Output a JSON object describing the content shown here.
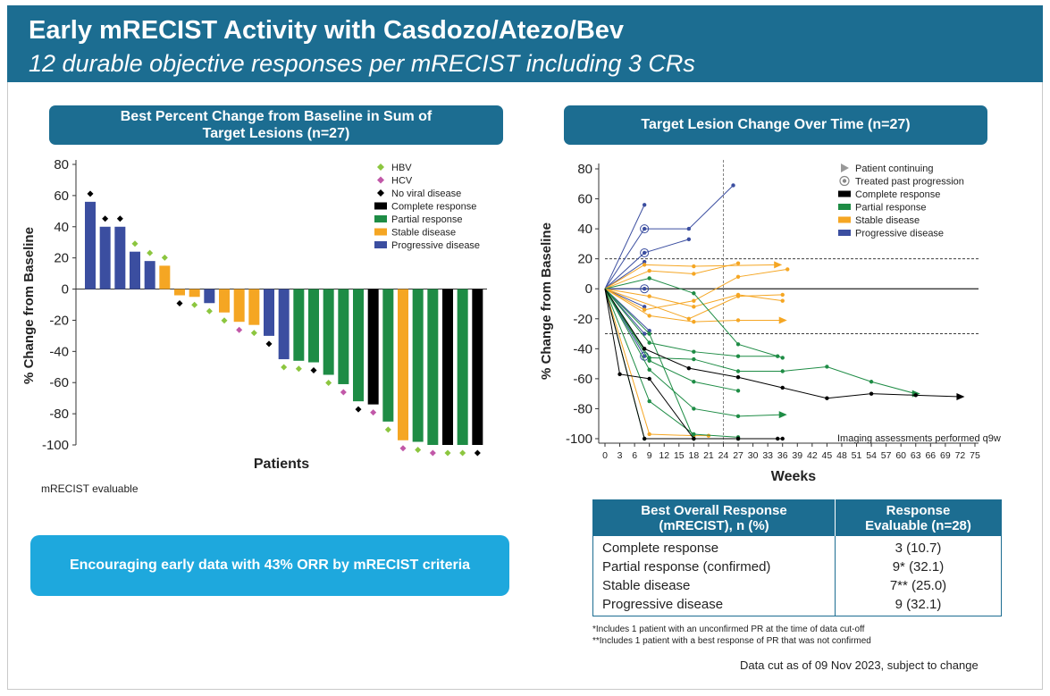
{
  "header": {
    "title": "Early mRECIST Activity with Casdozo/Atezo/Bev",
    "subtitle": "12 durable objective responses per mRECIST including 3 CRs"
  },
  "colors": {
    "complete": "#000000",
    "partial": "#1e8c45",
    "stable": "#f5a623",
    "progressive": "#3b4ea0",
    "hbv": "#8cc63f",
    "hcv": "#c158a8",
    "none": "#000000",
    "header": "#1c6d91",
    "cta": "#1ea8dd"
  },
  "left_chart": {
    "title_line1": "Best Percent Change from Baseline in Sum of",
    "title_line2": "Target Lesions (n=27)",
    "ylabel": "% Change from Baseline",
    "xlabel": "Patients",
    "footnote": "mRECIST evaluable"
  },
  "right_chart": {
    "title": "Target Lesion Change Over Time (n=27)",
    "ylabel": "% Change from Baseline",
    "xlabel": "Weeks",
    "note": "Imaging assessments performed q9w"
  },
  "cta": {
    "text": "Encouraging early data with 43% ORR by mRECIST criteria"
  },
  "response_table": {
    "header_left_1": "Best Overall Response",
    "header_left_2": "(mRECIST), n (%)",
    "header_right_1": "Response",
    "header_right_2": "Evaluable (n=28)",
    "rows": [
      {
        "label": "Complete response",
        "value": "3 (10.7)"
      },
      {
        "label": "Partial response (confirmed)",
        "value": "9* (32.1)"
      },
      {
        "label": "Stable disease",
        "value": "7** (25.0)"
      },
      {
        "label": "Progressive disease",
        "value": "9 (32.1)"
      }
    ],
    "footnote1": "*Includes 1 patient with an unconfirmed PR at the time of data cut-off",
    "footnote2": "**Includes 1 patient with a best response of PR that was not confirmed"
  },
  "data_cut": "Data cut as of 09 Nov 2023, subject to change",
  "chart_data": [
    {
      "type": "bar",
      "ylim": [
        -100,
        80
      ],
      "yticks": [
        80,
        60,
        40,
        20,
        0,
        -20,
        -40,
        -60,
        -80,
        -100
      ],
      "legend_placement": "top-right",
      "legend": [
        {
          "label": "HBV",
          "marker": "diamond",
          "color": "#8cc63f"
        },
        {
          "label": "HCV",
          "marker": "diamond",
          "color": "#c158a8"
        },
        {
          "label": "No viral disease",
          "marker": "diamond",
          "color": "#000000"
        },
        {
          "label": "Complete response",
          "marker": "bar",
          "color": "#000000"
        },
        {
          "label": "Partial response",
          "marker": "bar",
          "color": "#1e8c45"
        },
        {
          "label": "Stable disease",
          "marker": "bar",
          "color": "#f5a623"
        },
        {
          "label": "Progressive disease",
          "marker": "bar",
          "color": "#3b4ea0"
        }
      ],
      "bars": [
        {
          "value": 56,
          "response": "PD",
          "viral": "none"
        },
        {
          "value": 40,
          "response": "PD",
          "viral": "none"
        },
        {
          "value": 40,
          "response": "PD",
          "viral": "none"
        },
        {
          "value": 24,
          "response": "PD",
          "viral": "HBV"
        },
        {
          "value": 18,
          "response": "PD",
          "viral": "HBV"
        },
        {
          "value": 15,
          "response": "SD",
          "viral": "HBV"
        },
        {
          "value": -4,
          "response": "SD",
          "viral": "none"
        },
        {
          "value": -5,
          "response": "SD",
          "viral": "HBV"
        },
        {
          "value": -9,
          "response": "PD",
          "viral": "HBV"
        },
        {
          "value": -15,
          "response": "SD",
          "viral": "HBV"
        },
        {
          "value": -21,
          "response": "SD",
          "viral": "HCV"
        },
        {
          "value": -23,
          "response": "SD",
          "viral": "HBV"
        },
        {
          "value": -30,
          "response": "PD",
          "viral": "none"
        },
        {
          "value": -45,
          "response": "PD",
          "viral": "HBV"
        },
        {
          "value": -46,
          "response": "PR",
          "viral": "HBV"
        },
        {
          "value": -47,
          "response": "PR",
          "viral": "none"
        },
        {
          "value": -55,
          "response": "PR",
          "viral": "HBV"
        },
        {
          "value": -61,
          "response": "PR",
          "viral": "HCV"
        },
        {
          "value": -72,
          "response": "PR",
          "viral": "none"
        },
        {
          "value": -74,
          "response": "CR",
          "viral": "HCV"
        },
        {
          "value": -85,
          "response": "PR",
          "viral": "HBV"
        },
        {
          "value": -97,
          "response": "SD",
          "viral": "HCV"
        },
        {
          "value": -98,
          "response": "PR",
          "viral": "HBV"
        },
        {
          "value": -100,
          "response": "PR",
          "viral": "HCV"
        },
        {
          "value": -100,
          "response": "CR",
          "viral": "HBV"
        },
        {
          "value": -100,
          "response": "PR",
          "viral": "HBV"
        },
        {
          "value": -100,
          "response": "CR",
          "viral": "none"
        }
      ]
    },
    {
      "type": "line",
      "xlim": [
        0,
        75
      ],
      "ylim": [
        -100,
        80
      ],
      "xticks": [
        0,
        3,
        6,
        9,
        12,
        15,
        18,
        21,
        24,
        27,
        30,
        33,
        36,
        39,
        42,
        45,
        48,
        51,
        54,
        57,
        60,
        63,
        66,
        69,
        72,
        75
      ],
      "yticks": [
        80,
        60,
        40,
        20,
        0,
        -20,
        -40,
        -60,
        -80,
        -100
      ],
      "reference_lines": [
        20,
        0,
        -30
      ],
      "vertical_line_x": 24,
      "legend_placement": "top-right",
      "legend": [
        {
          "label": "Patient continuing",
          "marker": "triangle"
        },
        {
          "label": "Treated past progression",
          "marker": "ring"
        },
        {
          "label": "Complete response",
          "color": "#000000"
        },
        {
          "label": "Partial response",
          "color": "#1e8c45"
        },
        {
          "label": "Stable disease",
          "color": "#f5a623"
        },
        {
          "label": "Progressive disease",
          "color": "#3b4ea0"
        }
      ],
      "series": [
        {
          "response": "PD",
          "points": [
            [
              0,
              0
            ],
            [
              8,
              40
            ],
            [
              17,
              40
            ],
            [
              26,
              69
            ]
          ],
          "rings": [
            8
          ]
        },
        {
          "response": "PD",
          "points": [
            [
              0,
              0
            ],
            [
              8,
              56
            ]
          ]
        },
        {
          "response": "PD",
          "points": [
            [
              0,
              0
            ],
            [
              8,
              24
            ],
            [
              17,
              33
            ]
          ],
          "rings": [
            8
          ]
        },
        {
          "response": "PD",
          "points": [
            [
              0,
              0
            ],
            [
              8,
              18
            ]
          ]
        },
        {
          "response": "PD",
          "points": [
            [
              0,
              0
            ],
            [
              8,
              0
            ]
          ],
          "rings": [
            8
          ]
        },
        {
          "response": "PD",
          "points": [
            [
              0,
              0
            ],
            [
              8,
              -12
            ]
          ]
        },
        {
          "response": "PD",
          "points": [
            [
              0,
              0
            ],
            [
              8,
              -30
            ]
          ]
        },
        {
          "response": "PD",
          "points": [
            [
              0,
              0
            ],
            [
              8,
              -45
            ]
          ],
          "rings": [
            8
          ]
        },
        {
          "response": "PD",
          "points": [
            [
              0,
              0
            ],
            [
              9,
              -28
            ]
          ]
        },
        {
          "response": "SD",
          "points": [
            [
              0,
              0
            ],
            [
              8,
              16
            ],
            [
              18,
              15
            ],
            [
              35,
              16
            ]
          ],
          "end": "triangle"
        },
        {
          "response": "SD",
          "points": [
            [
              0,
              0
            ],
            [
              9,
              12
            ],
            [
              18,
              10
            ],
            [
              27,
              17
            ]
          ]
        },
        {
          "response": "SD",
          "points": [
            [
              0,
              0
            ],
            [
              9,
              -5
            ],
            [
              18,
              -12
            ],
            [
              27,
              -4
            ],
            [
              36,
              -8
            ]
          ]
        },
        {
          "response": "SD",
          "points": [
            [
              0,
              0
            ],
            [
              9,
              -18
            ],
            [
              18,
              -22
            ],
            [
              27,
              -21
            ],
            [
              36,
              -21
            ]
          ],
          "end": "triangle"
        },
        {
          "response": "SD",
          "points": [
            [
              0,
              0
            ],
            [
              8,
              -14
            ],
            [
              18,
              -8
            ],
            [
              27,
              8
            ],
            [
              37,
              13
            ]
          ]
        },
        {
          "response": "SD",
          "points": [
            [
              0,
              0
            ],
            [
              9,
              -97
            ],
            [
              18,
              -98
            ],
            [
              21,
              -98
            ]
          ]
        },
        {
          "response": "SD",
          "points": [
            [
              0,
              0
            ],
            [
              17,
              -20
            ],
            [
              27,
              -5
            ],
            [
              36,
              -4
            ]
          ]
        },
        {
          "response": "PR",
          "points": [
            [
              0,
              0
            ],
            [
              9,
              7
            ],
            [
              18,
              -3
            ],
            [
              27,
              -37
            ],
            [
              36,
              -46
            ]
          ]
        },
        {
          "response": "PR",
          "points": [
            [
              0,
              0
            ],
            [
              9,
              -46
            ],
            [
              18,
              -47
            ],
            [
              27,
              -55
            ],
            [
              36,
              -55
            ],
            [
              45,
              -52
            ],
            [
              54,
              -62
            ],
            [
              63,
              -70
            ]
          ],
          "end": "triangle"
        },
        {
          "response": "PR",
          "points": [
            [
              0,
              0
            ],
            [
              9,
              -36
            ],
            [
              18,
              -42
            ],
            [
              27,
              -45
            ],
            [
              35,
              -45
            ]
          ]
        },
        {
          "response": "PR",
          "points": [
            [
              0,
              0
            ],
            [
              9,
              -48
            ],
            [
              18,
              -62
            ],
            [
              27,
              -68
            ]
          ]
        },
        {
          "response": "PR",
          "points": [
            [
              0,
              0
            ],
            [
              9,
              -54
            ],
            [
              18,
              -80
            ],
            [
              27,
              -85
            ],
            [
              36,
              -84
            ]
          ],
          "end": "triangle"
        },
        {
          "response": "PR",
          "points": [
            [
              0,
              0
            ],
            [
              8,
              -100
            ],
            [
              18,
              -100
            ],
            [
              27,
              -100
            ]
          ]
        },
        {
          "response": "PR",
          "points": [
            [
              0,
              0
            ],
            [
              9,
              -75
            ],
            [
              18,
              -97
            ],
            [
              27,
              -99
            ]
          ]
        },
        {
          "response": "PR",
          "points": [
            [
              0,
              0
            ],
            [
              9,
              -30
            ],
            [
              18,
              -100
            ]
          ]
        },
        {
          "response": "CR",
          "points": [
            [
              0,
              0
            ],
            [
              8,
              -40
            ],
            [
              17,
              -53
            ],
            [
              27,
              -59
            ],
            [
              36,
              -66
            ],
            [
              45,
              -73
            ],
            [
              54,
              -70
            ],
            [
              63,
              -71
            ],
            [
              72,
              -72
            ]
          ],
          "end": "triangle"
        },
        {
          "response": "CR",
          "points": [
            [
              0,
              0
            ],
            [
              8,
              -100
            ],
            [
              18,
              -100
            ],
            [
              27,
              -100
            ],
            [
              36,
              -100
            ]
          ]
        },
        {
          "response": "CR",
          "points": [
            [
              0,
              0
            ],
            [
              3,
              -57
            ],
            [
              9,
              -60
            ],
            [
              18,
              -100
            ],
            [
              27,
              -100
            ],
            [
              35,
              -100
            ]
          ]
        }
      ]
    }
  ]
}
